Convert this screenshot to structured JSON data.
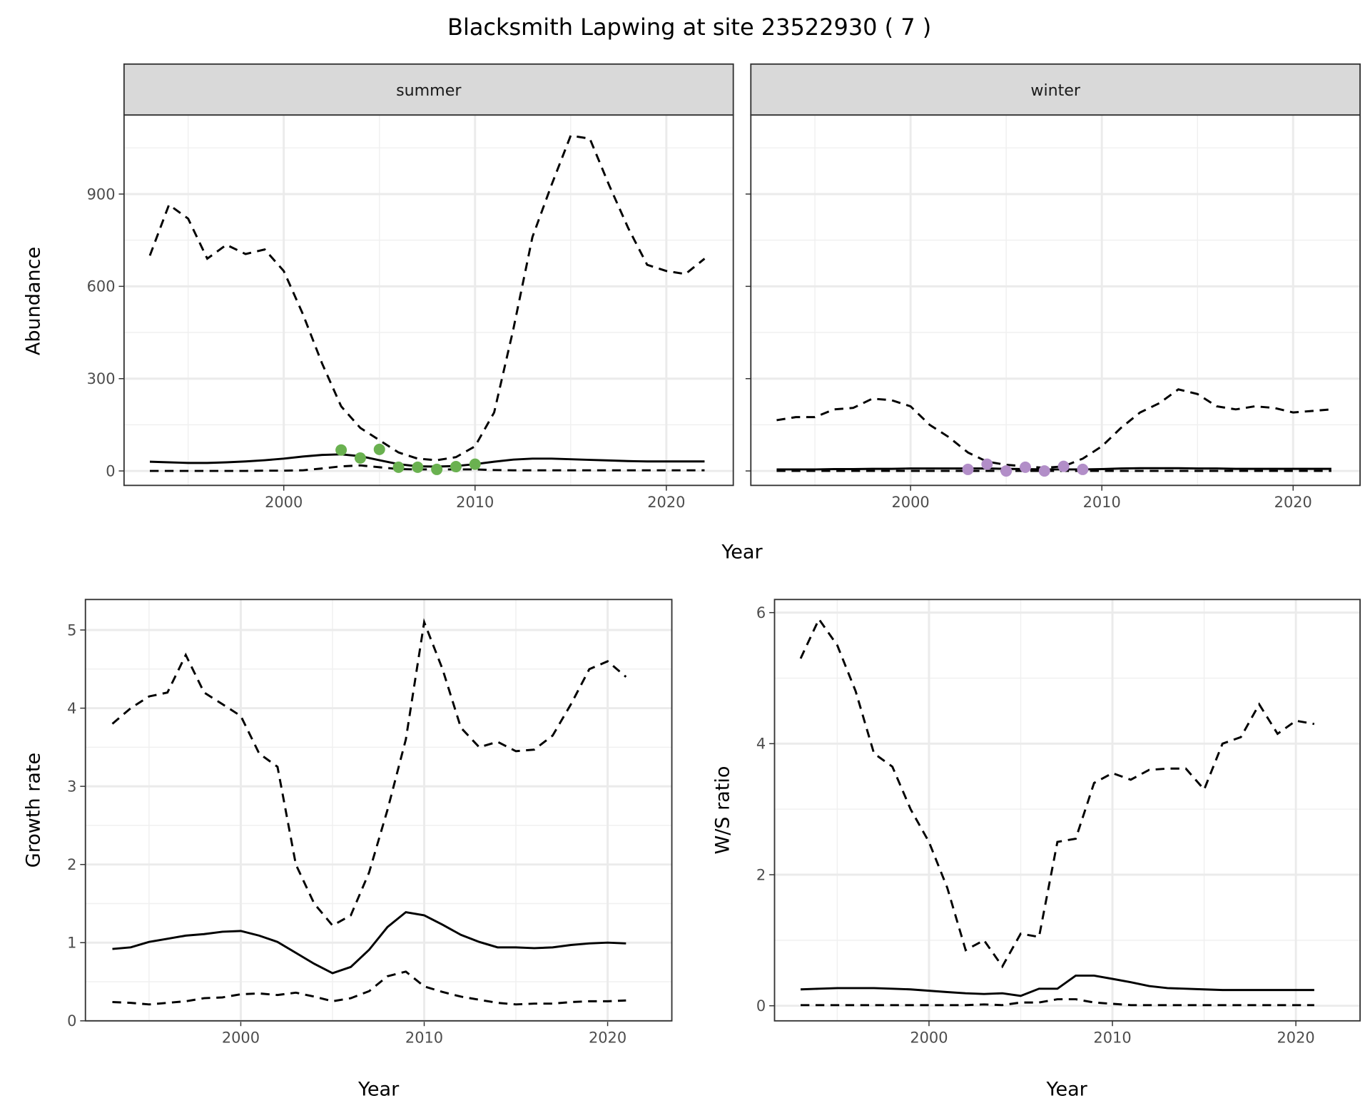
{
  "title": "Blacksmith Lapwing at site 23522930 ( 7 )",
  "chart_data": [
    {
      "type": "line",
      "panel": "summer",
      "strip_label": "summer",
      "xlabel": "Year",
      "ylabel": "Abundance",
      "xlim": [
        1991.65,
        2023.5
      ],
      "ylim": [
        -47,
        1157
      ],
      "xticks": [
        2000,
        2010,
        2020
      ],
      "yticks": [
        0,
        300,
        600,
        900
      ],
      "grid": true,
      "x": [
        1993,
        1994,
        1995,
        1996,
        1997,
        1998,
        1999,
        2000,
        2001,
        2002,
        2003,
        2004,
        2005,
        2006,
        2007,
        2008,
        2009,
        2010,
        2011,
        2012,
        2013,
        2014,
        2015,
        2016,
        2017,
        2018,
        2019,
        2020,
        2021,
        2022
      ],
      "series": [
        {
          "style": "dashed",
          "values": [
            700,
            865,
            820,
            690,
            735,
            705,
            720,
            650,
            510,
            350,
            210,
            140,
            100,
            60,
            40,
            35,
            45,
            80,
            190,
            460,
            760,
            930,
            1090,
            1080,
            930,
            790,
            670,
            650,
            640,
            690
          ]
        },
        {
          "style": "solid",
          "values": [
            30,
            28,
            26,
            26,
            28,
            31,
            35,
            40,
            47,
            52,
            54,
            48,
            35,
            22,
            15,
            14,
            16,
            22,
            30,
            37,
            40,
            40,
            38,
            36,
            34,
            32,
            31,
            31,
            31,
            31
          ]
        },
        {
          "style": "dashed",
          "values": [
            0,
            0,
            0,
            0,
            0,
            0,
            1,
            1,
            2,
            8,
            15,
            18,
            12,
            6,
            5,
            5,
            5,
            5,
            3,
            2,
            2,
            2,
            2,
            2,
            2,
            2,
            2,
            2,
            2,
            2
          ]
        }
      ],
      "points": {
        "color": "#6ab150",
        "x": [
          2003,
          2004,
          2005,
          2006,
          2007,
          2008,
          2009,
          2010
        ],
        "y": [
          68,
          42,
          70,
          12,
          12,
          5,
          14,
          22
        ]
      }
    },
    {
      "type": "line",
      "panel": "winter",
      "strip_label": "winter",
      "xlabel": "Year",
      "ylabel": "Abundance",
      "xlim": [
        1991.65,
        2023.5
      ],
      "ylim": [
        -47,
        1157
      ],
      "xticks": [
        2000,
        2010,
        2020
      ],
      "yticks": [
        0,
        300,
        600,
        900
      ],
      "grid": true,
      "x": [
        1993,
        1994,
        1995,
        1996,
        1997,
        1998,
        1999,
        2000,
        2001,
        2002,
        2003,
        2004,
        2005,
        2006,
        2007,
        2008,
        2009,
        2010,
        2011,
        2012,
        2013,
        2014,
        2015,
        2016,
        2017,
        2018,
        2019,
        2020,
        2021,
        2022
      ],
      "series": [
        {
          "style": "dashed",
          "values": [
            165,
            175,
            175,
            200,
            205,
            235,
            230,
            210,
            150,
            110,
            60,
            30,
            20,
            15,
            10,
            15,
            40,
            80,
            140,
            190,
            220,
            265,
            250,
            210,
            200,
            210,
            205,
            190,
            195,
            200
          ]
        },
        {
          "style": "solid",
          "values": [
            5,
            5,
            5,
            6,
            6,
            7,
            7,
            8,
            8,
            8,
            8,
            8,
            7,
            6,
            5,
            5,
            5,
            6,
            8,
            9,
            9,
            9,
            8,
            8,
            7,
            7,
            7,
            7,
            7,
            7
          ]
        },
        {
          "style": "dashed",
          "values": [
            0,
            0,
            0,
            0,
            0,
            0,
            0,
            0,
            0,
            0,
            0,
            0,
            0,
            0,
            0,
            0,
            0,
            0,
            0,
            0,
            0,
            0,
            0,
            0,
            0,
            0,
            0,
            0,
            0,
            0
          ]
        }
      ],
      "points": {
        "color": "#b28ec8",
        "x": [
          2003,
          2004,
          2005,
          2006,
          2007,
          2008,
          2009
        ],
        "y": [
          5,
          22,
          0,
          12,
          0,
          15,
          5
        ]
      }
    },
    {
      "type": "line",
      "panel": "growth",
      "xlabel": "Year",
      "ylabel": "Growth rate",
      "xlim": [
        1991.53,
        2023.5
      ],
      "ylim": [
        0,
        5.39
      ],
      "xticks": [
        2000,
        2010,
        2020
      ],
      "yticks": [
        0,
        1,
        2,
        3,
        4,
        5
      ],
      "grid": true,
      "x": [
        1993,
        1994,
        1995,
        1996,
        1997,
        1998,
        1999,
        2000,
        2001,
        2002,
        2003,
        2004,
        2005,
        2006,
        2007,
        2008,
        2009,
        2010,
        2011,
        2012,
        2013,
        2014,
        2015,
        2016,
        2017,
        2018,
        2019,
        2020,
        2021
      ],
      "series": [
        {
          "style": "dashed",
          "values": [
            3.8,
            4.0,
            4.15,
            4.2,
            4.68,
            4.2,
            4.05,
            3.9,
            3.42,
            3.25,
            2.0,
            1.5,
            1.22,
            1.35,
            1.9,
            2.7,
            3.6,
            5.1,
            4.5,
            3.75,
            3.5,
            3.57,
            3.45,
            3.47,
            3.65,
            4.05,
            4.5,
            4.6,
            4.4
          ]
        },
        {
          "style": "solid",
          "values": [
            0.92,
            0.94,
            1.01,
            1.05,
            1.09,
            1.11,
            1.14,
            1.15,
            1.09,
            1.01,
            0.87,
            0.73,
            0.61,
            0.69,
            0.91,
            1.2,
            1.39,
            1.35,
            1.23,
            1.1,
            1.01,
            0.94,
            0.94,
            0.93,
            0.94,
            0.97,
            0.99,
            1.0,
            0.99
          ]
        },
        {
          "style": "dashed",
          "values": [
            0.24,
            0.23,
            0.21,
            0.23,
            0.25,
            0.29,
            0.3,
            0.34,
            0.35,
            0.33,
            0.36,
            0.31,
            0.25,
            0.29,
            0.38,
            0.57,
            0.63,
            0.44,
            0.37,
            0.31,
            0.27,
            0.23,
            0.21,
            0.22,
            0.22,
            0.24,
            0.25,
            0.25,
            0.26
          ]
        }
      ]
    },
    {
      "type": "line",
      "panel": "ratio",
      "xlabel": "Year",
      "ylabel": "W/S ratio",
      "xlim": [
        1991.58,
        2023.5
      ],
      "ylim": [
        -0.23,
        6.2
      ],
      "xticks": [
        2000,
        2010,
        2020
      ],
      "yticks": [
        0,
        2,
        4,
        6
      ],
      "grid": true,
      "x": [
        1993,
        1994,
        1995,
        1996,
        1997,
        1998,
        1999,
        2000,
        2001,
        2002,
        2003,
        2004,
        2005,
        2006,
        2007,
        2008,
        2009,
        2010,
        2011,
        2012,
        2013,
        2014,
        2015,
        2016,
        2017,
        2018,
        2019,
        2020,
        2021
      ],
      "series": [
        {
          "style": "dashed",
          "values": [
            5.3,
            5.9,
            5.5,
            4.8,
            3.85,
            3.65,
            3.0,
            2.5,
            1.8,
            0.85,
            1.0,
            0.6,
            1.1,
            1.05,
            2.5,
            2.55,
            3.4,
            3.55,
            3.45,
            3.6,
            3.62,
            3.62,
            3.3,
            4.0,
            4.1,
            4.6,
            4.15,
            4.35,
            4.3
          ]
        },
        {
          "style": "solid",
          "values": [
            0.25,
            0.26,
            0.27,
            0.27,
            0.27,
            0.26,
            0.25,
            0.23,
            0.21,
            0.19,
            0.18,
            0.19,
            0.15,
            0.26,
            0.26,
            0.46,
            0.46,
            0.41,
            0.36,
            0.3,
            0.27,
            0.26,
            0.25,
            0.24,
            0.24,
            0.24,
            0.24,
            0.24,
            0.24
          ]
        },
        {
          "style": "dashed",
          "values": [
            0.01,
            0.01,
            0.01,
            0.01,
            0.01,
            0.01,
            0.01,
            0.01,
            0.01,
            0.01,
            0.02,
            0.01,
            0.05,
            0.05,
            0.1,
            0.1,
            0.05,
            0.03,
            0.01,
            0.01,
            0.01,
            0.01,
            0.01,
            0.01,
            0.01,
            0.01,
            0.01,
            0.01,
            0.01
          ]
        }
      ]
    }
  ]
}
